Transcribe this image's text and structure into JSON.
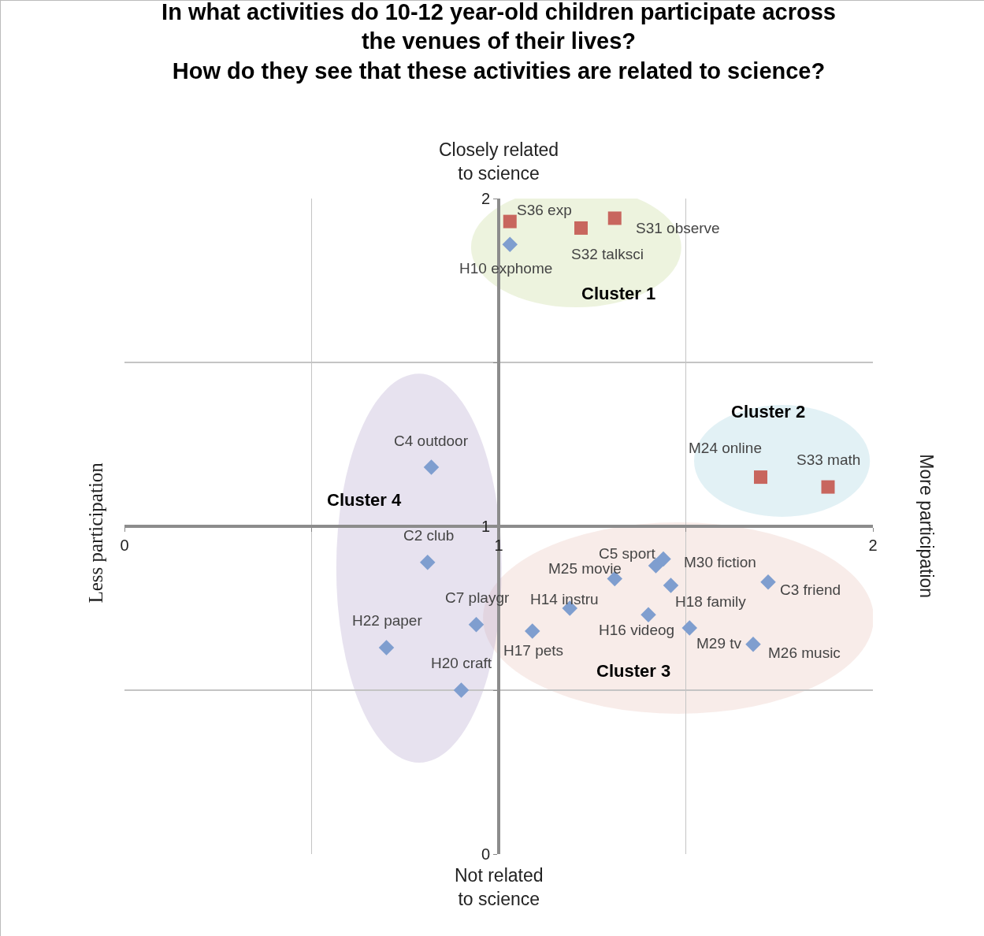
{
  "chart_data": {
    "type": "scatter",
    "title": "In what activities do 10-12 year-old children participate across\nthe venues of their lives?\nHow do they see that these activities are related to science?",
    "xlabel": "Not related\nto science",
    "ylabel": "Less participation",
    "xlim": [
      0,
      2
    ],
    "ylim": [
      0,
      2
    ],
    "xticks": [
      0,
      {
        "value": 0.5,
        "label": null
      },
      1,
      {
        "value": 1.5,
        "label": null
      },
      2
    ],
    "yticks": [
      0,
      {
        "value": 0.5,
        "label": null
      },
      1,
      {
        "value": 1.5,
        "label": null
      },
      2
    ],
    "grid": true,
    "series": [
      {
        "color": "#c8665e",
        "marker": "square",
        "x": [
          1.03,
          1.22,
          1.31,
          1.7,
          1.88
        ],
        "values": [
          1.93,
          1.91,
          1.94,
          1.15,
          1.12
        ]
      },
      {
        "color": "#7f9ecf",
        "marker": "diamond",
        "x": [
          1.03,
          0.82,
          0.81,
          0.94,
          0.7,
          0.9,
          1.09,
          1.19,
          1.31,
          1.42,
          1.44,
          1.46,
          1.4,
          1.51,
          1.68,
          1.72
        ],
        "values": [
          1.86,
          1.18,
          0.89,
          0.7,
          0.63,
          0.5,
          0.68,
          0.75,
          0.84,
          0.88,
          0.9,
          0.82,
          0.73,
          0.69,
          0.64,
          0.83
        ]
      }
    ],
    "annotations": [
      "Closely related\nto science",
      "More participation",
      "Cluster 1",
      "Cluster 2",
      "Cluster 3",
      "Cluster 4",
      {
        "text": "S36 exp",
        "x": 1.03,
        "y": 1.93
      },
      {
        "text": "S32 talksci",
        "x": 1.22,
        "y": 1.91
      },
      {
        "text": "S31 observe",
        "x": 1.31,
        "y": 1.94
      },
      {
        "text": "M24 online",
        "x": 1.7,
        "y": 1.15
      },
      {
        "text": "S33 math",
        "x": 1.88,
        "y": 1.12
      },
      {
        "text": "H10 exphome",
        "x": 1.03,
        "y": 1.86
      },
      {
        "text": "C4 outdoor",
        "x": 0.82,
        "y": 1.18
      },
      {
        "text": "C2 club",
        "x": 0.81,
        "y": 0.89
      },
      {
        "text": "C7 playgr",
        "x": 0.94,
        "y": 0.7
      },
      {
        "text": "H22 paper",
        "x": 0.7,
        "y": 0.63
      },
      {
        "text": "H20 craft",
        "x": 0.9,
        "y": 0.5
      },
      {
        "text": "H17 pets",
        "x": 1.09,
        "y": 0.68
      },
      {
        "text": "H14 instru",
        "x": 1.19,
        "y": 0.75
      },
      {
        "text": "M25 movie",
        "x": 1.31,
        "y": 0.84
      },
      {
        "text": "C5 sport",
        "x": 1.42,
        "y": 0.88
      },
      {
        "text": "M30 fiction",
        "x": 1.44,
        "y": 0.9
      },
      {
        "text": "H18 family",
        "x": 1.46,
        "y": 0.82
      },
      {
        "text": "H16 videog",
        "x": 1.4,
        "y": 0.73
      },
      {
        "text": "M29 tv",
        "x": 1.51,
        "y": 0.69
      },
      {
        "text": "M26 music",
        "x": 1.68,
        "y": 0.64
      },
      {
        "text": "C3 friend",
        "x": 1.72,
        "y": 0.83
      }
    ]
  }
}
